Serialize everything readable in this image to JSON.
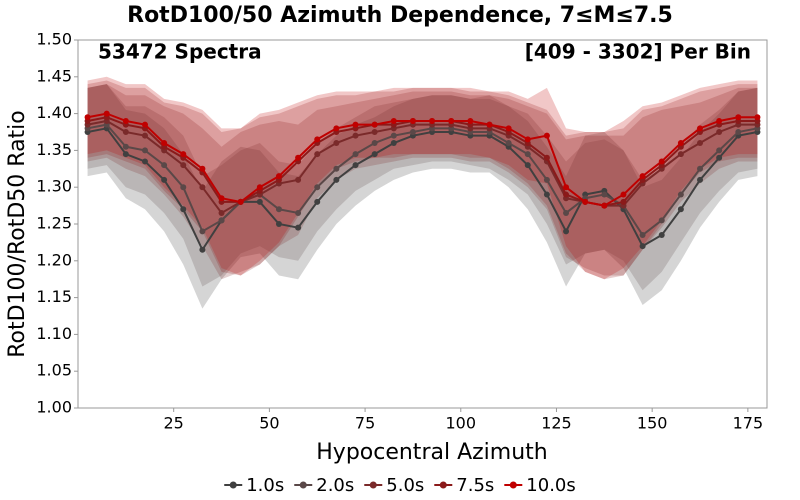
{
  "chart_data": {
    "type": "line",
    "title": "RotD100/50 Azimuth Dependence, 7≤M≤7.5",
    "annotations": [
      "53472 Spectra",
      "[409 - 3302] Per Bin"
    ],
    "xlabel": "Hypocentral Azimuth",
    "ylabel": "RotD100/RotD50 Ratio",
    "x": [
      2.5,
      7.5,
      12.5,
      17.5,
      22.5,
      27.5,
      32.5,
      37.5,
      42.5,
      47.5,
      52.5,
      57.5,
      62.5,
      67.5,
      72.5,
      77.5,
      82.5,
      87.5,
      92.5,
      97.5,
      102.5,
      107.5,
      112.5,
      117.5,
      122.5,
      127.5,
      132.5,
      137.5,
      142.5,
      147.5,
      152.5,
      157.5,
      162.5,
      167.5,
      172.5,
      177.5
    ],
    "xlim": [
      0,
      180
    ],
    "xticks": [
      25,
      50,
      75,
      100,
      125,
      150,
      175
    ],
    "ylim": [
      1.0,
      1.5
    ],
    "yticks": [
      {
        "value": 1.0,
        "label": "1.00"
      },
      {
        "value": 1.05,
        "label": "1.05"
      },
      {
        "value": 1.1,
        "label": "1.10"
      },
      {
        "value": 1.15,
        "label": "1.15"
      },
      {
        "value": 1.2,
        "label": "1.20"
      },
      {
        "value": 1.25,
        "label": "1.25"
      },
      {
        "value": 1.3,
        "label": "1.30"
      },
      {
        "value": 1.35,
        "label": "1.35"
      },
      {
        "value": 1.4,
        "label": "1.40"
      },
      {
        "value": 1.45,
        "label": "1.45"
      },
      {
        "value": 1.5,
        "label": "1.50"
      }
    ],
    "series": [
      {
        "name": "1.0s",
        "color": "#404040",
        "values": [
          1.375,
          1.38,
          1.345,
          1.335,
          1.31,
          1.27,
          1.215,
          1.255,
          1.28,
          1.28,
          1.25,
          1.245,
          1.28,
          1.31,
          1.33,
          1.345,
          1.36,
          1.37,
          1.375,
          1.375,
          1.37,
          1.37,
          1.355,
          1.33,
          1.29,
          1.24,
          1.29,
          1.295,
          1.27,
          1.22,
          1.235,
          1.27,
          1.31,
          1.34,
          1.37,
          1.375
        ],
        "std": [
          0.06,
          0.06,
          0.06,
          0.065,
          0.07,
          0.075,
          0.08,
          0.08,
          0.075,
          0.07,
          0.07,
          0.07,
          0.065,
          0.06,
          0.055,
          0.05,
          0.05,
          0.05,
          0.05,
          0.05,
          0.05,
          0.05,
          0.055,
          0.06,
          0.065,
          0.075,
          0.08,
          0.08,
          0.08,
          0.08,
          0.075,
          0.07,
          0.065,
          0.06,
          0.06,
          0.06
        ]
      },
      {
        "name": "2.0s",
        "color": "#5a4848",
        "values": [
          1.38,
          1.385,
          1.355,
          1.35,
          1.33,
          1.3,
          1.24,
          1.255,
          1.28,
          1.29,
          1.27,
          1.265,
          1.3,
          1.325,
          1.345,
          1.36,
          1.37,
          1.375,
          1.38,
          1.38,
          1.375,
          1.375,
          1.36,
          1.345,
          1.31,
          1.265,
          1.285,
          1.29,
          1.275,
          1.235,
          1.255,
          1.29,
          1.325,
          1.35,
          1.375,
          1.38
        ],
        "std": [
          0.055,
          0.055,
          0.055,
          0.06,
          0.065,
          0.07,
          0.075,
          0.075,
          0.07,
          0.07,
          0.065,
          0.065,
          0.06,
          0.055,
          0.05,
          0.05,
          0.045,
          0.045,
          0.045,
          0.045,
          0.045,
          0.05,
          0.05,
          0.055,
          0.06,
          0.07,
          0.075,
          0.075,
          0.075,
          0.075,
          0.07,
          0.065,
          0.06,
          0.055,
          0.055,
          0.055
        ]
      },
      {
        "name": "5.0s",
        "color": "#7a2a2a",
        "values": [
          1.385,
          1.39,
          1.375,
          1.37,
          1.35,
          1.33,
          1.3,
          1.265,
          1.28,
          1.29,
          1.305,
          1.31,
          1.345,
          1.36,
          1.37,
          1.375,
          1.38,
          1.385,
          1.385,
          1.385,
          1.38,
          1.38,
          1.37,
          1.355,
          1.335,
          1.285,
          1.28,
          1.275,
          1.275,
          1.305,
          1.325,
          1.345,
          1.36,
          1.375,
          1.385,
          1.385
        ],
        "std": [
          0.05,
          0.05,
          0.05,
          0.055,
          0.06,
          0.07,
          0.08,
          0.09,
          0.095,
          0.095,
          0.085,
          0.075,
          0.06,
          0.05,
          0.045,
          0.045,
          0.045,
          0.045,
          0.045,
          0.045,
          0.045,
          0.045,
          0.05,
          0.055,
          0.065,
          0.08,
          0.09,
          0.095,
          0.095,
          0.09,
          0.08,
          0.065,
          0.055,
          0.05,
          0.05,
          0.05
        ]
      },
      {
        "name": "7.5s",
        "color": "#8b1a1a",
        "values": [
          1.39,
          1.395,
          1.385,
          1.38,
          1.355,
          1.34,
          1.32,
          1.28,
          1.28,
          1.295,
          1.31,
          1.335,
          1.36,
          1.375,
          1.38,
          1.385,
          1.385,
          1.39,
          1.39,
          1.39,
          1.385,
          1.385,
          1.375,
          1.36,
          1.34,
          1.29,
          1.28,
          1.275,
          1.28,
          1.31,
          1.33,
          1.355,
          1.375,
          1.385,
          1.39,
          1.39
        ],
        "std": [
          0.05,
          0.05,
          0.05,
          0.055,
          0.06,
          0.07,
          0.08,
          0.095,
          0.1,
          0.1,
          0.09,
          0.075,
          0.06,
          0.05,
          0.045,
          0.045,
          0.045,
          0.045,
          0.045,
          0.045,
          0.045,
          0.045,
          0.05,
          0.055,
          0.065,
          0.08,
          0.095,
          0.1,
          0.1,
          0.095,
          0.08,
          0.065,
          0.055,
          0.05,
          0.05,
          0.05
        ]
      },
      {
        "name": "10.0s",
        "color": "#c00000",
        "values": [
          1.395,
          1.4,
          1.39,
          1.385,
          1.36,
          1.345,
          1.325,
          1.285,
          1.28,
          1.3,
          1.315,
          1.34,
          1.365,
          1.38,
          1.385,
          1.385,
          1.39,
          1.39,
          1.39,
          1.39,
          1.39,
          1.385,
          1.38,
          1.365,
          1.37,
          1.3,
          1.28,
          1.275,
          1.29,
          1.315,
          1.335,
          1.36,
          1.38,
          1.39,
          1.395,
          1.395
        ],
        "std": [
          0.05,
          0.05,
          0.05,
          0.055,
          0.06,
          0.07,
          0.08,
          0.095,
          0.1,
          0.1,
          0.09,
          0.075,
          0.06,
          0.05,
          0.045,
          0.045,
          0.045,
          0.045,
          0.045,
          0.045,
          0.045,
          0.045,
          0.05,
          0.055,
          0.065,
          0.08,
          0.095,
          0.1,
          0.1,
          0.095,
          0.08,
          0.065,
          0.055,
          0.05,
          0.05,
          0.05
        ]
      }
    ]
  }
}
